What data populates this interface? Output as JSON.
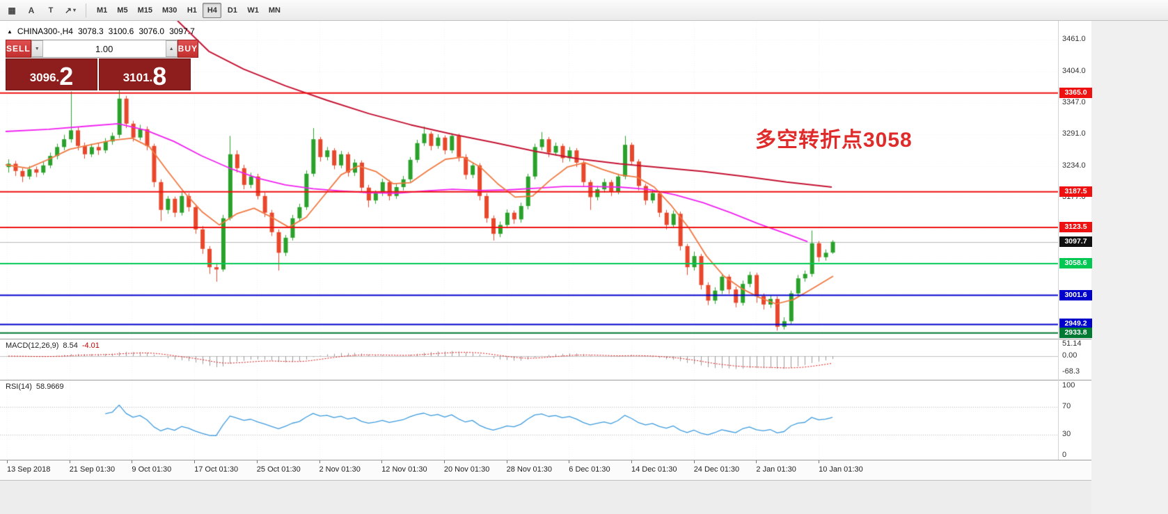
{
  "toolbar": {
    "tools": [
      {
        "name": "grid",
        "glyph": "▦"
      },
      {
        "name": "text-label",
        "glyph": "A"
      },
      {
        "name": "text-frame",
        "glyph": "T"
      },
      {
        "name": "shapes",
        "glyph": "↗"
      },
      {
        "name": "shapes-caret",
        "glyph": "▾"
      }
    ],
    "timeframes": [
      {
        "label": "M1",
        "active": false
      },
      {
        "label": "M5",
        "active": false
      },
      {
        "label": "M15",
        "active": false
      },
      {
        "label": "M30",
        "active": false
      },
      {
        "label": "H1",
        "active": false
      },
      {
        "label": "H4",
        "active": true
      },
      {
        "label": "D1",
        "active": false
      },
      {
        "label": "W1",
        "active": false
      },
      {
        "label": "MN",
        "active": false
      }
    ]
  },
  "chart_header": {
    "marker": "▲",
    "symbol_period": "CHINA300-,H4",
    "open": "3078.3",
    "high": "3100.6",
    "low": "3076.0",
    "close": "3097.7"
  },
  "trade_panel": {
    "sell_label": "SELL",
    "buy_label": "BUY",
    "volume": "1.00",
    "volume_down_glyph": "▼",
    "volume_up_glyph": "▲",
    "sell_price": "3096.2",
    "sell_price_small": "3096.",
    "sell_price_big": "2",
    "buy_price": "3101.8",
    "buy_price_small": "3101.",
    "buy_price_big": "8"
  },
  "annotation": {
    "text": "多空转折点3058",
    "color": "#e02b2b"
  },
  "price_axis": {
    "ticks": [
      [
        "3461.0",
        3461
      ],
      [
        "3404.0",
        3404
      ],
      [
        "3347.0",
        3347
      ],
      [
        "3291.0",
        3291
      ],
      [
        "3234.0",
        3234
      ],
      [
        "3177.0",
        3177
      ]
    ]
  },
  "macd_panel": {
    "name": "MACD(12,26,9)",
    "main_value": "8.54",
    "signal_value": "-4.01",
    "axis": [
      [
        "51.14",
        51.14
      ],
      [
        "0.00",
        0
      ],
      [
        "-68.3",
        -68.3
      ]
    ]
  },
  "rsi_panel": {
    "name": "RSI(14)",
    "value": "58.9669",
    "axis": [
      [
        "100",
        100
      ],
      [
        "70",
        70
      ],
      [
        "30",
        30
      ],
      [
        "0",
        0
      ]
    ],
    "levels": [
      70,
      30
    ]
  },
  "time_axis": {
    "labels": [
      "13 Sep 2018",
      "21 Sep 01:30",
      "9 Oct 01:30",
      "17 Oct 01:30",
      "25 Oct 01:30",
      "2 Nov 01:30",
      "12 Nov 01:30",
      "20 Nov 01:30",
      "28 Nov 01:30",
      "6 Dec 01:30",
      "14 Dec 01:30",
      "24 Dec 01:30",
      "2 Jan 01:30",
      "10 Jan 01:30"
    ]
  },
  "chart_data": {
    "type": "candlestick",
    "symbol": "CHINA300-",
    "timeframe": "H4",
    "last_price": 3097.7,
    "price_range": [
      2918,
      3493
    ],
    "up_color": "#2aa12a",
    "down_color": "#e8472b",
    "grid": {
      "h_prices": [
        3461,
        3404,
        3347,
        3291,
        3234,
        3177,
        3120,
        3063,
        3006,
        2949
      ]
    },
    "candles": [
      [
        3232,
        3246,
        3222,
        3238
      ],
      [
        3238,
        3243,
        3216,
        3225
      ],
      [
        3225,
        3230,
        3205,
        3215
      ],
      [
        3215,
        3234,
        3210,
        3228
      ],
      [
        3228,
        3233,
        3214,
        3222
      ],
      [
        3222,
        3241,
        3218,
        3235
      ],
      [
        3235,
        3258,
        3230,
        3252
      ],
      [
        3252,
        3274,
        3246,
        3268
      ],
      [
        3268,
        3290,
        3262,
        3282
      ],
      [
        3282,
        3368,
        3276,
        3298
      ],
      [
        3298,
        3304,
        3262,
        3270
      ],
      [
        3270,
        3276,
        3247,
        3255
      ],
      [
        3255,
        3274,
        3250,
        3268
      ],
      [
        3268,
        3275,
        3254,
        3262
      ],
      [
        3262,
        3284,
        3257,
        3278
      ],
      [
        3278,
        3294,
        3272,
        3288
      ],
      [
        3290,
        3375,
        3284,
        3355
      ],
      [
        3355,
        3360,
        3302,
        3310
      ],
      [
        3310,
        3315,
        3278,
        3285
      ],
      [
        3285,
        3308,
        3280,
        3300
      ],
      [
        3300,
        3305,
        3262,
        3270
      ],
      [
        3270,
        3274,
        3196,
        3205
      ],
      [
        3205,
        3210,
        3135,
        3155
      ],
      [
        3155,
        3180,
        3148,
        3175
      ],
      [
        3175,
        3179,
        3142,
        3150
      ],
      [
        3150,
        3186,
        3145,
        3180
      ],
      [
        3180,
        3185,
        3152,
        3160
      ],
      [
        3160,
        3165,
        3112,
        3120
      ],
      [
        3120,
        3126,
        3076,
        3085
      ],
      [
        3085,
        3090,
        3040,
        3052
      ],
      [
        3052,
        3060,
        3026,
        3048
      ],
      [
        3048,
        3146,
        3044,
        3140
      ],
      [
        3140,
        3288,
        3136,
        3255
      ],
      [
        3255,
        3262,
        3222,
        3230
      ],
      [
        3230,
        3236,
        3192,
        3200
      ],
      [
        3200,
        3222,
        3194,
        3215
      ],
      [
        3215,
        3220,
        3174,
        3180
      ],
      [
        3180,
        3186,
        3142,
        3150
      ],
      [
        3150,
        3155,
        3108,
        3115
      ],
      [
        3115,
        3120,
        3046,
        3078
      ],
      [
        3078,
        3110,
        3072,
        3105
      ],
      [
        3105,
        3146,
        3100,
        3140
      ],
      [
        3140,
        3166,
        3134,
        3160
      ],
      [
        3160,
        3226,
        3155,
        3220
      ],
      [
        3220,
        3302,
        3215,
        3282
      ],
      [
        3282,
        3286,
        3242,
        3250
      ],
      [
        3250,
        3268,
        3244,
        3262
      ],
      [
        3262,
        3266,
        3228,
        3235
      ],
      [
        3235,
        3261,
        3230,
        3255
      ],
      [
        3255,
        3259,
        3215,
        3222
      ],
      [
        3222,
        3246,
        3216,
        3240
      ],
      [
        3240,
        3244,
        3188,
        3195
      ],
      [
        3195,
        3200,
        3160,
        3172
      ],
      [
        3172,
        3190,
        3166,
        3185
      ],
      [
        3185,
        3211,
        3180,
        3205
      ],
      [
        3205,
        3209,
        3172,
        3180
      ],
      [
        3180,
        3202,
        3175,
        3196
      ],
      [
        3196,
        3216,
        3190,
        3210
      ],
      [
        3210,
        3250,
        3205,
        3245
      ],
      [
        3245,
        3281,
        3240,
        3275
      ],
      [
        3275,
        3305,
        3270,
        3292
      ],
      [
        3292,
        3296,
        3262,
        3270
      ],
      [
        3270,
        3291,
        3265,
        3285
      ],
      [
        3285,
        3289,
        3255,
        3262
      ],
      [
        3262,
        3293,
        3257,
        3288
      ],
      [
        3288,
        3292,
        3242,
        3250
      ],
      [
        3250,
        3255,
        3210,
        3218
      ],
      [
        3218,
        3241,
        3212,
        3235
      ],
      [
        3235,
        3239,
        3172,
        3180
      ],
      [
        3180,
        3185,
        3132,
        3140
      ],
      [
        3140,
        3145,
        3100,
        3112
      ],
      [
        3112,
        3134,
        3106,
        3128
      ],
      [
        3128,
        3156,
        3122,
        3150
      ],
      [
        3150,
        3154,
        3130,
        3138
      ],
      [
        3138,
        3168,
        3132,
        3162
      ],
      [
        3162,
        3220,
        3156,
        3215
      ],
      [
        3215,
        3274,
        3210,
        3268
      ],
      [
        3268,
        3295,
        3262,
        3282
      ],
      [
        3282,
        3286,
        3250,
        3258
      ],
      [
        3258,
        3276,
        3252,
        3270
      ],
      [
        3270,
        3274,
        3240,
        3248
      ],
      [
        3248,
        3268,
        3242,
        3262
      ],
      [
        3262,
        3266,
        3232,
        3240
      ],
      [
        3240,
        3244,
        3196,
        3205
      ],
      [
        3205,
        3209,
        3155,
        3178
      ],
      [
        3178,
        3198,
        3172,
        3192
      ],
      [
        3192,
        3211,
        3186,
        3205
      ],
      [
        3205,
        3209,
        3180,
        3188
      ],
      [
        3188,
        3220,
        3183,
        3215
      ],
      [
        3215,
        3288,
        3210,
        3272
      ],
      [
        3272,
        3276,
        3235,
        3242
      ],
      [
        3242,
        3246,
        3190,
        3198
      ],
      [
        3198,
        3202,
        3164,
        3172
      ],
      [
        3172,
        3192,
        3167,
        3185
      ],
      [
        3185,
        3189,
        3142,
        3150
      ],
      [
        3150,
        3155,
        3120,
        3128
      ],
      [
        3128,
        3154,
        3122,
        3148
      ],
      [
        3148,
        3152,
        3082,
        3090
      ],
      [
        3090,
        3094,
        3038,
        3052
      ],
      [
        3052,
        3080,
        3046,
        3072
      ],
      [
        3072,
        3076,
        3012,
        3020
      ],
      [
        3020,
        3025,
        2984,
        2992
      ],
      [
        2992,
        3016,
        2986,
        3010
      ],
      [
        3010,
        3041,
        3004,
        3035
      ],
      [
        3035,
        3039,
        3004,
        3012
      ],
      [
        3012,
        3017,
        2980,
        2988
      ],
      [
        2988,
        3028,
        2983,
        3022
      ],
      [
        3022,
        3044,
        3016,
        3038
      ],
      [
        3038,
        3042,
        2988,
        3000
      ],
      [
        3000,
        3005,
        2976,
        2985
      ],
      [
        2985,
        3001,
        2979,
        2995
      ],
      [
        2995,
        3000,
        2938,
        2945
      ],
      [
        2945,
        2962,
        2940,
        2955
      ],
      [
        2955,
        3010,
        2950,
        3005
      ],
      [
        3005,
        3038,
        3000,
        3032
      ],
      [
        3032,
        3046,
        3026,
        3040
      ],
      [
        3040,
        3118,
        3035,
        3095
      ],
      [
        3095,
        3099,
        3062,
        3070
      ],
      [
        3070,
        3084,
        3064,
        3078
      ],
      [
        3078.3,
        3100.6,
        3076.0,
        3097.7
      ]
    ],
    "moving_averages": [
      {
        "name": "slow-ma",
        "color": "#c41232",
        "width": 2,
        "points": [
          [
            255,
            3495
          ],
          [
            300,
            3440
          ],
          [
            350,
            3408
          ],
          [
            410,
            3378
          ],
          [
            470,
            3352
          ],
          [
            530,
            3328
          ],
          [
            590,
            3308
          ],
          [
            650,
            3291
          ],
          [
            710,
            3276
          ],
          [
            770,
            3260
          ],
          [
            830,
            3247
          ],
          [
            890,
            3238
          ],
          [
            950,
            3231
          ],
          [
            1010,
            3224
          ],
          [
            1070,
            3215
          ],
          [
            1130,
            3205
          ],
          [
            1195,
            3196
          ]
        ]
      },
      {
        "name": "medium-ma",
        "color": "#f020f0",
        "width": 1.8,
        "points": [
          [
            8,
            3296
          ],
          [
            70,
            3300
          ],
          [
            130,
            3306
          ],
          [
            170,
            3310
          ],
          [
            210,
            3298
          ],
          [
            250,
            3278
          ],
          [
            290,
            3252
          ],
          [
            330,
            3230
          ],
          [
            370,
            3212
          ],
          [
            410,
            3200
          ],
          [
            450,
            3193
          ],
          [
            490,
            3189
          ],
          [
            530,
            3186
          ],
          [
            570,
            3185
          ],
          [
            610,
            3189
          ],
          [
            650,
            3192
          ],
          [
            690,
            3190
          ],
          [
            730,
            3191
          ],
          [
            770,
            3194
          ],
          [
            810,
            3197
          ],
          [
            850,
            3197
          ],
          [
            890,
            3196
          ],
          [
            930,
            3192
          ],
          [
            970,
            3182
          ],
          [
            1010,
            3168
          ],
          [
            1050,
            3150
          ],
          [
            1090,
            3130
          ],
          [
            1130,
            3112
          ],
          [
            1160,
            3098
          ]
        ]
      },
      {
        "name": "fast-ma",
        "color": "#f07840",
        "width": 1.8,
        "points": [
          [
            8,
            3236
          ],
          [
            40,
            3230
          ],
          [
            70,
            3246
          ],
          [
            100,
            3264
          ],
          [
            130,
            3272
          ],
          [
            160,
            3280
          ],
          [
            190,
            3284
          ],
          [
            215,
            3268
          ],
          [
            240,
            3226
          ],
          [
            265,
            3186
          ],
          [
            290,
            3152
          ],
          [
            315,
            3128
          ],
          [
            340,
            3148
          ],
          [
            365,
            3158
          ],
          [
            390,
            3142
          ],
          [
            415,
            3124
          ],
          [
            440,
            3142
          ],
          [
            465,
            3180
          ],
          [
            490,
            3218
          ],
          [
            515,
            3234
          ],
          [
            540,
            3224
          ],
          [
            565,
            3202
          ],
          [
            590,
            3204
          ],
          [
            615,
            3226
          ],
          [
            640,
            3246
          ],
          [
            665,
            3250
          ],
          [
            690,
            3232
          ],
          [
            715,
            3202
          ],
          [
            740,
            3178
          ],
          [
            765,
            3180
          ],
          [
            790,
            3208
          ],
          [
            815,
            3232
          ],
          [
            840,
            3240
          ],
          [
            865,
            3228
          ],
          [
            890,
            3218
          ],
          [
            915,
            3214
          ],
          [
            940,
            3196
          ],
          [
            965,
            3162
          ],
          [
            990,
            3122
          ],
          [
            1015,
            3072
          ],
          [
            1040,
            3036
          ],
          [
            1065,
            3014
          ],
          [
            1090,
            2998
          ],
          [
            1115,
            2986
          ],
          [
            1140,
            2994
          ],
          [
            1165,
            3012
          ],
          [
            1197,
            3036
          ]
        ]
      }
    ],
    "hlines": [
      {
        "label": "3365.0",
        "price": 3365.0,
        "color": "#ee1111"
      },
      {
        "label": "3187.5",
        "price": 3187.5,
        "color": "#ee1111"
      },
      {
        "label": "3123.5",
        "price": 3123.5,
        "color": "#ee1111"
      },
      {
        "label": "3097.7",
        "price": 3097.7,
        "color": "#111111",
        "last": true
      },
      {
        "label": "3058.6",
        "price": 3058.6,
        "color": "#00c853"
      },
      {
        "label": "3001.6",
        "price": 3001.6,
        "color": "#0000cd"
      },
      {
        "label": "2949.2",
        "price": 2949.2,
        "color": "#0000cd"
      },
      {
        "label": "2933.8",
        "price": 2933.8,
        "color": "#007a33"
      }
    ],
    "indicators": [
      {
        "type": "macd",
        "params": [
          12,
          26,
          9
        ],
        "main_value": 8.54,
        "signal_value": -4.01,
        "scale": [
          51.14,
          -68.3
        ]
      },
      {
        "type": "rsi",
        "params": [
          14
        ],
        "value": 58.9669,
        "scale": [
          0,
          100
        ],
        "levels": [
          30,
          70
        ]
      }
    ]
  }
}
